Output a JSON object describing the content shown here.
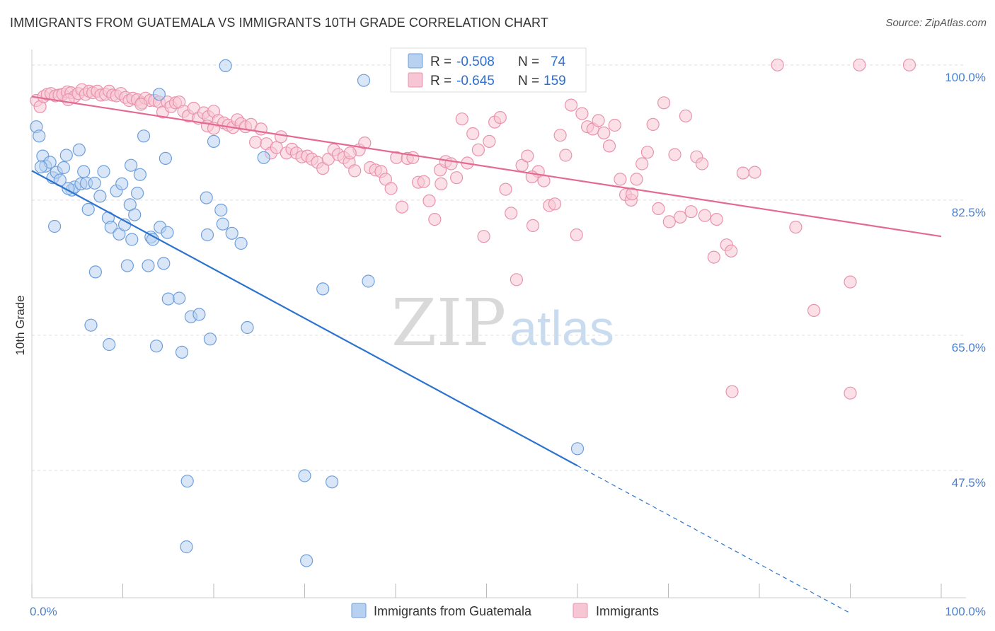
{
  "title": "IMMIGRANTS FROM GUATEMALA VS IMMIGRANTS 10TH GRADE CORRELATION CHART",
  "source": "Source: ZipAtlas.com",
  "watermark": {
    "zip": "ZIP",
    "atlas": "atlas"
  },
  "chart_data": {
    "type": "scatter",
    "ylabel": "10th Grade",
    "x_tick_labels": [
      "0.0%",
      "100.0%"
    ],
    "y_tick_labels": [
      "100.0%",
      "82.5%",
      "65.0%",
      "47.5%"
    ],
    "y_ticks": [
      100.0,
      82.5,
      65.0,
      47.5
    ],
    "xlim": [
      0,
      100
    ],
    "ylim": [
      31,
      102
    ],
    "grid": true,
    "legend_position": "top-center",
    "legend": {
      "r_label": "R =",
      "n_label": "N =",
      "entries": [
        {
          "r": "-0.508",
          "n": "74"
        },
        {
          "r": "-0.645",
          "n": "159"
        }
      ]
    },
    "colors": {
      "blue_fill": "#b8d1f1",
      "blue_stroke": "#6e9fdc",
      "blue_line": "#2b73cf",
      "pink_fill": "#f7c6d4",
      "pink_stroke": "#e993ad",
      "pink_line": "#e46a93",
      "tick_label": "#4a7fd0"
    },
    "series": [
      {
        "name": "Immigrants from Guatemala",
        "trend": {
          "x0": 0,
          "y0": 86.3,
          "x1": 60,
          "y1": 48.1,
          "dash_to_x": 90
        },
        "points": [
          [
            0.5,
            92.0
          ],
          [
            0.8,
            90.8
          ],
          [
            1.2,
            88.2
          ],
          [
            1.5,
            86.9
          ],
          [
            2.0,
            87.4
          ],
          [
            2.3,
            85.4
          ],
          [
            2.7,
            86.1
          ],
          [
            3.1,
            85.1
          ],
          [
            3.5,
            86.7
          ],
          [
            3.8,
            88.3
          ],
          [
            4.4,
            83.8
          ],
          [
            4.7,
            84.2
          ],
          [
            5.2,
            89.0
          ],
          [
            5.4,
            84.6
          ],
          [
            5.7,
            86.2
          ],
          [
            6.0,
            84.7
          ],
          [
            6.2,
            81.3
          ],
          [
            6.9,
            84.7
          ],
          [
            7.5,
            83.0
          ],
          [
            7.9,
            86.2
          ],
          [
            8.4,
            80.2
          ],
          [
            8.7,
            79.0
          ],
          [
            9.3,
            83.7
          ],
          [
            9.6,
            78.1
          ],
          [
            9.9,
            84.6
          ],
          [
            10.2,
            79.3
          ],
          [
            10.5,
            74.0
          ],
          [
            10.8,
            81.9
          ],
          [
            10.9,
            87.0
          ],
          [
            11.3,
            80.6
          ],
          [
            11.6,
            83.4
          ],
          [
            11.9,
            85.8
          ],
          [
            12.3,
            90.8
          ],
          [
            12.8,
            74.0
          ],
          [
            13.1,
            77.7
          ],
          [
            13.3,
            77.4
          ],
          [
            13.7,
            63.6
          ],
          [
            14.1,
            79.0
          ],
          [
            14.5,
            74.3
          ],
          [
            14.7,
            87.9
          ],
          [
            14.9,
            78.3
          ],
          [
            15.0,
            69.7
          ],
          [
            14.0,
            96.2
          ],
          [
            16.2,
            69.8
          ],
          [
            16.5,
            62.8
          ],
          [
            17.1,
            46.1
          ],
          [
            17.0,
            37.6
          ],
          [
            17.5,
            67.4
          ],
          [
            18.4,
            67.7
          ],
          [
            19.2,
            82.8
          ],
          [
            19.3,
            78.0
          ],
          [
            19.6,
            64.5
          ],
          [
            20.0,
            90.1
          ],
          [
            20.8,
            81.2
          ],
          [
            21.0,
            79.4
          ],
          [
            21.3,
            99.9
          ],
          [
            22.0,
            78.2
          ],
          [
            23.0,
            76.9
          ],
          [
            23.7,
            66.0
          ],
          [
            25.5,
            88.0
          ],
          [
            30.0,
            46.8
          ],
          [
            30.2,
            35.8
          ],
          [
            32.0,
            71.0
          ],
          [
            33.0,
            46.0
          ],
          [
            36.5,
            98.0
          ],
          [
            37.0,
            72.0
          ],
          [
            60.0,
            50.3
          ],
          [
            4.0,
            84.0
          ],
          [
            1.0,
            86.8
          ],
          [
            7.0,
            73.2
          ],
          [
            6.5,
            66.3
          ],
          [
            8.5,
            63.8
          ],
          [
            2.5,
            79.1
          ],
          [
            11.0,
            77.4
          ]
        ]
      },
      {
        "name": "Immigrants",
        "trend": {
          "x0": 0,
          "y0": 95.9,
          "x1": 100,
          "y1": 77.8
        },
        "points": [
          [
            0.5,
            95.4
          ],
          [
            0.9,
            94.6
          ],
          [
            1.3,
            95.9
          ],
          [
            1.7,
            96.2
          ],
          [
            2.1,
            96.3
          ],
          [
            2.6,
            96.0
          ],
          [
            3.0,
            96.1
          ],
          [
            3.4,
            96.2
          ],
          [
            3.9,
            96.5
          ],
          [
            4.3,
            96.4
          ],
          [
            4.7,
            95.9
          ],
          [
            5.1,
            96.3
          ],
          [
            5.5,
            96.8
          ],
          [
            5.9,
            96.2
          ],
          [
            6.3,
            96.6
          ],
          [
            6.7,
            96.4
          ],
          [
            7.2,
            96.6
          ],
          [
            7.6,
            96.1
          ],
          [
            8.1,
            96.2
          ],
          [
            8.5,
            96.6
          ],
          [
            8.9,
            96.1
          ],
          [
            9.3,
            96.0
          ],
          [
            9.8,
            96.3
          ],
          [
            10.3,
            95.8
          ],
          [
            10.7,
            95.4
          ],
          [
            11.1,
            95.7
          ],
          [
            11.6,
            95.5
          ],
          [
            12.1,
            95.1
          ],
          [
            12.5,
            95.7
          ],
          [
            13.0,
            95.4
          ],
          [
            13.5,
            95.4
          ],
          [
            14.0,
            95.2
          ],
          [
            14.4,
            93.9
          ],
          [
            14.9,
            95.2
          ],
          [
            15.3,
            94.6
          ],
          [
            15.8,
            95.1
          ],
          [
            16.2,
            95.2
          ],
          [
            16.7,
            94.0
          ],
          [
            17.2,
            93.4
          ],
          [
            17.8,
            94.4
          ],
          [
            18.3,
            93.1
          ],
          [
            18.9,
            93.8
          ],
          [
            19.4,
            93.3
          ],
          [
            19.3,
            92.1
          ],
          [
            20.0,
            94.0
          ],
          [
            20.5,
            92.8
          ],
          [
            21.1,
            92.5
          ],
          [
            21.6,
            92.2
          ],
          [
            22.1,
            91.9
          ],
          [
            22.6,
            92.9
          ],
          [
            23.0,
            92.4
          ],
          [
            23.5,
            92.0
          ],
          [
            24.1,
            92.3
          ],
          [
            24.6,
            90.0
          ],
          [
            25.2,
            91.7
          ],
          [
            25.8,
            89.8
          ],
          [
            26.3,
            88.6
          ],
          [
            26.9,
            89.3
          ],
          [
            27.4,
            90.7
          ],
          [
            28.0,
            88.6
          ],
          [
            28.6,
            89.1
          ],
          [
            29.1,
            88.6
          ],
          [
            29.7,
            88.1
          ],
          [
            30.3,
            88.2
          ],
          [
            30.8,
            87.8
          ],
          [
            31.4,
            87.4
          ],
          [
            32.0,
            86.6
          ],
          [
            32.6,
            87.8
          ],
          [
            33.2,
            89.0
          ],
          [
            33.7,
            88.4
          ],
          [
            34.3,
            88.0
          ],
          [
            34.9,
            87.4
          ],
          [
            35.5,
            86.3
          ],
          [
            36.0,
            89.0
          ],
          [
            36.6,
            89.9
          ],
          [
            37.2,
            86.7
          ],
          [
            37.8,
            86.4
          ],
          [
            38.4,
            86.2
          ],
          [
            38.9,
            85.2
          ],
          [
            39.5,
            84.0
          ],
          [
            40.1,
            88.0
          ],
          [
            40.7,
            81.6
          ],
          [
            41.3,
            87.9
          ],
          [
            41.9,
            88.0
          ],
          [
            42.5,
            84.8
          ],
          [
            43.1,
            84.9
          ],
          [
            43.7,
            82.4
          ],
          [
            44.3,
            80.0
          ],
          [
            44.9,
            86.4
          ],
          [
            45.5,
            87.5
          ],
          [
            46.1,
            87.2
          ],
          [
            46.7,
            85.4
          ],
          [
            47.3,
            93.0
          ],
          [
            47.9,
            87.3
          ],
          [
            48.5,
            91.1
          ],
          [
            49.1,
            89.0
          ],
          [
            49.7,
            77.8
          ],
          [
            50.3,
            90.1
          ],
          [
            50.9,
            92.6
          ],
          [
            51.5,
            93.2
          ],
          [
            52.1,
            83.9
          ],
          [
            52.7,
            80.8
          ],
          [
            53.3,
            72.2
          ],
          [
            53.9,
            87.0
          ],
          [
            54.5,
            88.2
          ],
          [
            55.1,
            79.2
          ],
          [
            55.7,
            86.2
          ],
          [
            56.3,
            85.0
          ],
          [
            56.9,
            81.8
          ],
          [
            57.5,
            82.0
          ],
          [
            58.1,
            90.9
          ],
          [
            58.7,
            88.3
          ],
          [
            59.3,
            94.8
          ],
          [
            59.9,
            78.0
          ],
          [
            60.5,
            93.7
          ],
          [
            61.1,
            92.0
          ],
          [
            61.7,
            91.7
          ],
          [
            62.3,
            92.8
          ],
          [
            62.9,
            91.2
          ],
          [
            63.5,
            89.5
          ],
          [
            64.1,
            92.2
          ],
          [
            64.7,
            85.2
          ],
          [
            65.3,
            83.2
          ],
          [
            65.9,
            82.5
          ],
          [
            66.5,
            85.2
          ],
          [
            67.1,
            87.2
          ],
          [
            67.7,
            88.7
          ],
          [
            68.3,
            92.3
          ],
          [
            68.9,
            81.4
          ],
          [
            69.5,
            95.1
          ],
          [
            70.1,
            79.7
          ],
          [
            70.7,
            88.4
          ],
          [
            71.3,
            80.3
          ],
          [
            71.9,
            93.4
          ],
          [
            72.5,
            81.0
          ],
          [
            73.1,
            88.1
          ],
          [
            73.7,
            87.2
          ],
          [
            75.0,
            75.1
          ],
          [
            75.3,
            80.0
          ],
          [
            76.4,
            76.7
          ],
          [
            76.9,
            75.9
          ],
          [
            78.2,
            86.0
          ],
          [
            79.5,
            86.1
          ],
          [
            84.0,
            79.0
          ],
          [
            86.0,
            68.2
          ],
          [
            90.0,
            71.9
          ],
          [
            90.0,
            57.5
          ],
          [
            77.0,
            57.7
          ],
          [
            82.0,
            100.0
          ],
          [
            91.0,
            100.0
          ],
          [
            96.5,
            100.0
          ],
          [
            74.0,
            80.5
          ],
          [
            66.0,
            83.3
          ],
          [
            55.0,
            85.5
          ],
          [
            45.0,
            84.6
          ],
          [
            35.0,
            88.6
          ],
          [
            20.0,
            91.8
          ],
          [
            12.0,
            94.9
          ],
          [
            4.0,
            95.5
          ]
        ]
      }
    ]
  }
}
